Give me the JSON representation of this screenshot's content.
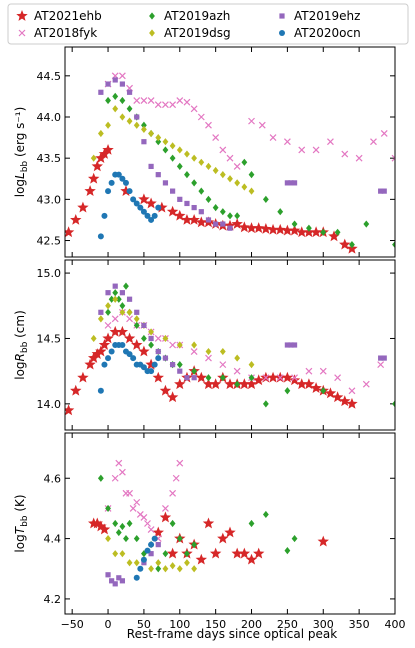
{
  "chart_data": {
    "type": "scatter",
    "xlabel": "Rest-frame days since optical peak",
    "xlim": [
      -60,
      400
    ],
    "xticks": [
      -50,
      0,
      50,
      100,
      150,
      200,
      250,
      300,
      350,
      400
    ],
    "legend": {
      "placement": "top",
      "entries": [
        {
          "name": "AT2021ehb",
          "color": "#d62728",
          "marker": "star"
        },
        {
          "name": "AT2019azh",
          "color": "#2ca02c",
          "marker": "diamond"
        },
        {
          "name": "AT2019ehz",
          "color": "#9467bd",
          "marker": "square"
        },
        {
          "name": "AT2018fyk",
          "color": "#e377c2",
          "marker": "x"
        },
        {
          "name": "AT2019dsg",
          "color": "#bcbd22",
          "marker": "diamond"
        },
        {
          "name": "AT2020ocn",
          "color": "#1f77b4",
          "marker": "circle"
        }
      ]
    },
    "panels": [
      {
        "id": "L",
        "ylabel_main": "log",
        "ylabel_sub": "bb",
        "ylabel_unit": " (erg s⁻¹)",
        "ylim": [
          42.3,
          44.85
        ],
        "yticks": [
          "42.5",
          "43.0",
          "43.5",
          "44.0",
          "44.5"
        ],
        "series": [
          {
            "name": "AT2021ehb",
            "x": [
              -55,
              -45,
              -35,
              -25,
              -20,
              -15,
              -10,
              -5,
              0,
              25,
              50,
              60,
              75,
              90,
              100,
              110,
              120,
              130,
              140,
              150,
              160,
              170,
              180,
              190,
              200,
              210,
              220,
              230,
              240,
              250,
              260,
              270,
              280,
              290,
              300,
              315,
              330,
              340
            ],
            "y": [
              42.6,
              42.75,
              42.9,
              43.1,
              43.25,
              43.4,
              43.5,
              43.55,
              43.6,
              43.1,
              43.0,
              42.95,
              42.9,
              42.85,
              42.8,
              42.75,
              42.75,
              42.72,
              42.72,
              42.7,
              42.68,
              42.68,
              42.7,
              42.66,
              42.65,
              42.65,
              42.64,
              42.63,
              42.63,
              42.62,
              42.62,
              42.6,
              42.6,
              42.6,
              42.6,
              42.55,
              42.45,
              42.4
            ]
          },
          {
            "name": "AT2018fyk",
            "x": [
              0,
              10,
              20,
              30,
              40,
              50,
              60,
              70,
              80,
              90,
              100,
              110,
              120,
              130,
              140,
              150,
              160,
              170,
              180,
              200,
              215,
              230,
              250,
              270,
              290,
              310,
              330,
              350,
              370,
              385,
              400
            ],
            "y": [
              44.4,
              44.5,
              44.5,
              44.35,
              44.2,
              44.2,
              44.2,
              44.15,
              44.15,
              44.15,
              44.2,
              44.18,
              44.1,
              44.0,
              43.9,
              43.75,
              43.6,
              43.5,
              43.4,
              43.95,
              43.9,
              43.75,
              43.7,
              43.6,
              43.6,
              43.7,
              43.55,
              43.5,
              43.7,
              43.8,
              43.5
            ]
          },
          {
            "name": "AT2019azh",
            "x": [
              0,
              10,
              20,
              30,
              40,
              50,
              60,
              70,
              80,
              90,
              100,
              110,
              120,
              130,
              140,
              150,
              160,
              170,
              180,
              190,
              200,
              220,
              240,
              260,
              280,
              300,
              320,
              340,
              360,
              400
            ],
            "y": [
              44.2,
              44.25,
              44.2,
              44.1,
              44.0,
              43.9,
              43.8,
              43.7,
              43.6,
              43.5,
              43.4,
              43.3,
              43.2,
              43.1,
              43.0,
              42.9,
              42.85,
              42.8,
              42.8,
              43.45,
              43.3,
              43.0,
              42.85,
              42.7,
              42.65,
              42.6,
              42.6,
              42.45,
              42.7,
              42.45
            ]
          },
          {
            "name": "AT2019dsg",
            "x": [
              -20,
              -10,
              0,
              10,
              20,
              30,
              40,
              50,
              60,
              70,
              80,
              90,
              100,
              110,
              120,
              130,
              140,
              150,
              160,
              170,
              180,
              190,
              200
            ],
            "y": [
              43.5,
              43.8,
              43.9,
              44.1,
              44.0,
              43.95,
              43.9,
              43.85,
              43.8,
              43.75,
              43.7,
              43.65,
              43.6,
              43.55,
              43.5,
              43.45,
              43.4,
              43.35,
              43.3,
              43.25,
              43.2,
              43.15,
              43.1
            ]
          },
          {
            "name": "AT2019ehz",
            "x": [
              -10,
              0,
              10,
              20,
              30,
              40,
              50,
              60,
              70,
              80,
              90,
              100,
              110,
              120,
              130,
              140,
              150,
              160,
              170,
              250,
              255,
              260,
              380,
              385
            ],
            "y": [
              44.3,
              44.4,
              44.45,
              44.4,
              44.3,
              44.0,
              43.7,
              43.4,
              43.3,
              43.2,
              43.1,
              43.0,
              42.95,
              42.9,
              42.85,
              42.75,
              42.7,
              42.7,
              42.65,
              43.2,
              43.2,
              43.2,
              43.1,
              43.1
            ]
          },
          {
            "name": "AT2020ocn",
            "x": [
              -10,
              -5,
              0,
              5,
              10,
              15,
              20,
              25,
              30,
              35,
              40,
              45,
              50,
              55,
              60,
              65,
              70
            ],
            "y": [
              42.55,
              42.8,
              43.1,
              43.2,
              43.3,
              43.3,
              43.25,
              43.2,
              43.1,
              43.0,
              42.95,
              42.9,
              42.85,
              42.8,
              42.75,
              42.8,
              42.9
            ]
          }
        ]
      },
      {
        "id": "R",
        "ylabel_main": "log",
        "ylabel_sub": "bb",
        "ylabel_unit": " (cm)",
        "ylim": [
          13.8,
          15.1
        ],
        "yticks": [
          "14.0",
          "14.5",
          "15.0"
        ],
        "series": [
          {
            "name": "AT2021ehb",
            "x": [
              -55,
              -45,
              -35,
              -25,
              -20,
              -15,
              -10,
              -5,
              0,
              10,
              20,
              30,
              40,
              50,
              60,
              70,
              80,
              90,
              100,
              110,
              120,
              130,
              140,
              150,
              160,
              170,
              180,
              190,
              200,
              210,
              220,
              230,
              240,
              250,
              260,
              270,
              280,
              290,
              300,
              310,
              320,
              330,
              340
            ],
            "y": [
              13.95,
              14.1,
              14.2,
              14.3,
              14.35,
              14.38,
              14.4,
              14.45,
              14.5,
              14.55,
              14.55,
              14.5,
              14.45,
              14.4,
              14.3,
              14.2,
              14.1,
              14.05,
              14.15,
              14.2,
              14.25,
              14.2,
              14.15,
              14.15,
              14.2,
              14.15,
              14.15,
              14.15,
              14.15,
              14.18,
              14.2,
              14.2,
              14.2,
              14.2,
              14.18,
              14.15,
              14.15,
              14.12,
              14.1,
              14.08,
              14.05,
              14.02,
              14.0
            ]
          },
          {
            "name": "AT2018fyk",
            "x": [
              0,
              10,
              20,
              30,
              40,
              50,
              60,
              70,
              80,
              90,
              100,
              120,
              140,
              160,
              180,
              200,
              220,
              240,
              260,
              280,
              300,
              320,
              340,
              360,
              380
            ],
            "y": [
              14.6,
              14.65,
              14.7,
              14.65,
              14.6,
              14.6,
              14.55,
              14.5,
              14.5,
              14.45,
              14.45,
              14.4,
              14.35,
              14.3,
              14.25,
              14.2,
              14.2,
              14.2,
              14.2,
              14.25,
              14.25,
              14.2,
              14.1,
              14.15,
              14.3
            ]
          },
          {
            "name": "AT2019azh",
            "x": [
              0,
              5,
              10,
              15,
              20,
              25,
              30,
              40,
              50,
              60,
              70,
              80,
              90,
              100,
              120,
              140,
              160,
              180,
              200,
              220,
              250,
              300,
              400
            ],
            "y": [
              14.7,
              14.8,
              14.85,
              14.8,
              14.75,
              14.9,
              14.7,
              14.6,
              14.5,
              14.45,
              14.4,
              14.35,
              14.3,
              14.3,
              14.25,
              14.2,
              14.2,
              14.15,
              14.2,
              14.0,
              14.1,
              14.1,
              14.0
            ]
          },
          {
            "name": "AT2019dsg",
            "x": [
              -20,
              -10,
              0,
              10,
              20,
              30,
              40,
              50,
              60,
              80,
              100,
              120,
              140,
              160,
              180,
              200
            ],
            "y": [
              14.5,
              14.65,
              14.75,
              14.8,
              14.7,
              14.7,
              14.65,
              14.6,
              14.55,
              14.5,
              14.45,
              14.45,
              14.4,
              14.4,
              14.35,
              14.3
            ]
          },
          {
            "name": "AT2019ehz",
            "x": [
              -10,
              0,
              10,
              20,
              30,
              40,
              50,
              60,
              70,
              80,
              90,
              100,
              110,
              120,
              250,
              255,
              260,
              380,
              385
            ],
            "y": [
              14.7,
              14.85,
              14.9,
              14.85,
              14.8,
              14.7,
              14.6,
              14.5,
              14.4,
              14.35,
              14.3,
              14.25,
              14.2,
              14.2,
              14.45,
              14.45,
              14.45,
              14.35,
              14.35
            ]
          },
          {
            "name": "AT2020ocn",
            "x": [
              -10,
              -5,
              0,
              5,
              10,
              15,
              20,
              25,
              30,
              35,
              40,
              45,
              50,
              55,
              60,
              65,
              70
            ],
            "y": [
              14.1,
              14.3,
              14.35,
              14.4,
              14.45,
              14.45,
              14.45,
              14.4,
              14.38,
              14.35,
              14.3,
              14.3,
              14.28,
              14.25,
              14.25,
              14.3,
              14.35
            ]
          }
        ]
      },
      {
        "id": "T",
        "ylabel_main": "log",
        "ylabel_sub": "bb",
        "ylabel_unit": " (K)",
        "ylim": [
          4.15,
          4.75
        ],
        "yticks": [
          "4.2",
          "4.4",
          "4.6"
        ],
        "series": [
          {
            "name": "AT2021ehb",
            "x": [
              -20,
              -15,
              -10,
              -5,
              70,
              80,
              90,
              100,
              110,
              120,
              130,
              140,
              150,
              160,
              170,
              180,
              190,
              200,
              210,
              300
            ],
            "y": [
              4.45,
              4.45,
              4.44,
              4.43,
              4.42,
              4.47,
              4.35,
              4.4,
              4.35,
              4.38,
              4.33,
              4.45,
              4.35,
              4.4,
              4.42,
              4.35,
              4.35,
              4.33,
              4.35,
              4.39
            ]
          },
          {
            "name": "AT2018fyk",
            "x": [
              0,
              10,
              15,
              20,
              25,
              30,
              35,
              40,
              45,
              50,
              55,
              60,
              70,
              80,
              90,
              95,
              100
            ],
            "y": [
              4.5,
              4.6,
              4.65,
              4.62,
              4.55,
              4.55,
              4.5,
              4.52,
              4.48,
              4.47,
              4.45,
              4.43,
              4.4,
              4.5,
              4.55,
              4.6,
              4.65
            ]
          },
          {
            "name": "AT2019azh",
            "x": [
              -10,
              0,
              10,
              15,
              20,
              25,
              30,
              40,
              50,
              60,
              70,
              80,
              90,
              100,
              110,
              120,
              200,
              220,
              250,
              260
            ],
            "y": [
              4.6,
              4.5,
              4.45,
              4.42,
              4.44,
              4.4,
              4.45,
              4.4,
              4.35,
              4.38,
              4.3,
              4.35,
              4.45,
              4.4,
              4.35,
              4.38,
              4.45,
              4.48,
              4.36,
              4.4
            ]
          },
          {
            "name": "AT2019dsg",
            "x": [
              0,
              10,
              20,
              30,
              40,
              50,
              60,
              70,
              80,
              90,
              100,
              110,
              120
            ],
            "y": [
              4.4,
              4.35,
              4.35,
              4.32,
              4.32,
              4.33,
              4.3,
              4.32,
              4.3,
              4.31,
              4.3,
              4.32,
              4.3
            ]
          },
          {
            "name": "AT2019ehz",
            "x": [
              0,
              5,
              10,
              15,
              20,
              50,
              60,
              70
            ],
            "y": [
              4.28,
              4.26,
              4.25,
              4.27,
              4.26,
              4.32,
              4.35,
              4.38
            ]
          },
          {
            "name": "AT2020ocn",
            "x": [
              40,
              45,
              50,
              55,
              60,
              65
            ],
            "y": [
              4.27,
              4.3,
              4.33,
              4.36,
              4.38,
              4.4
            ]
          }
        ]
      }
    ]
  }
}
